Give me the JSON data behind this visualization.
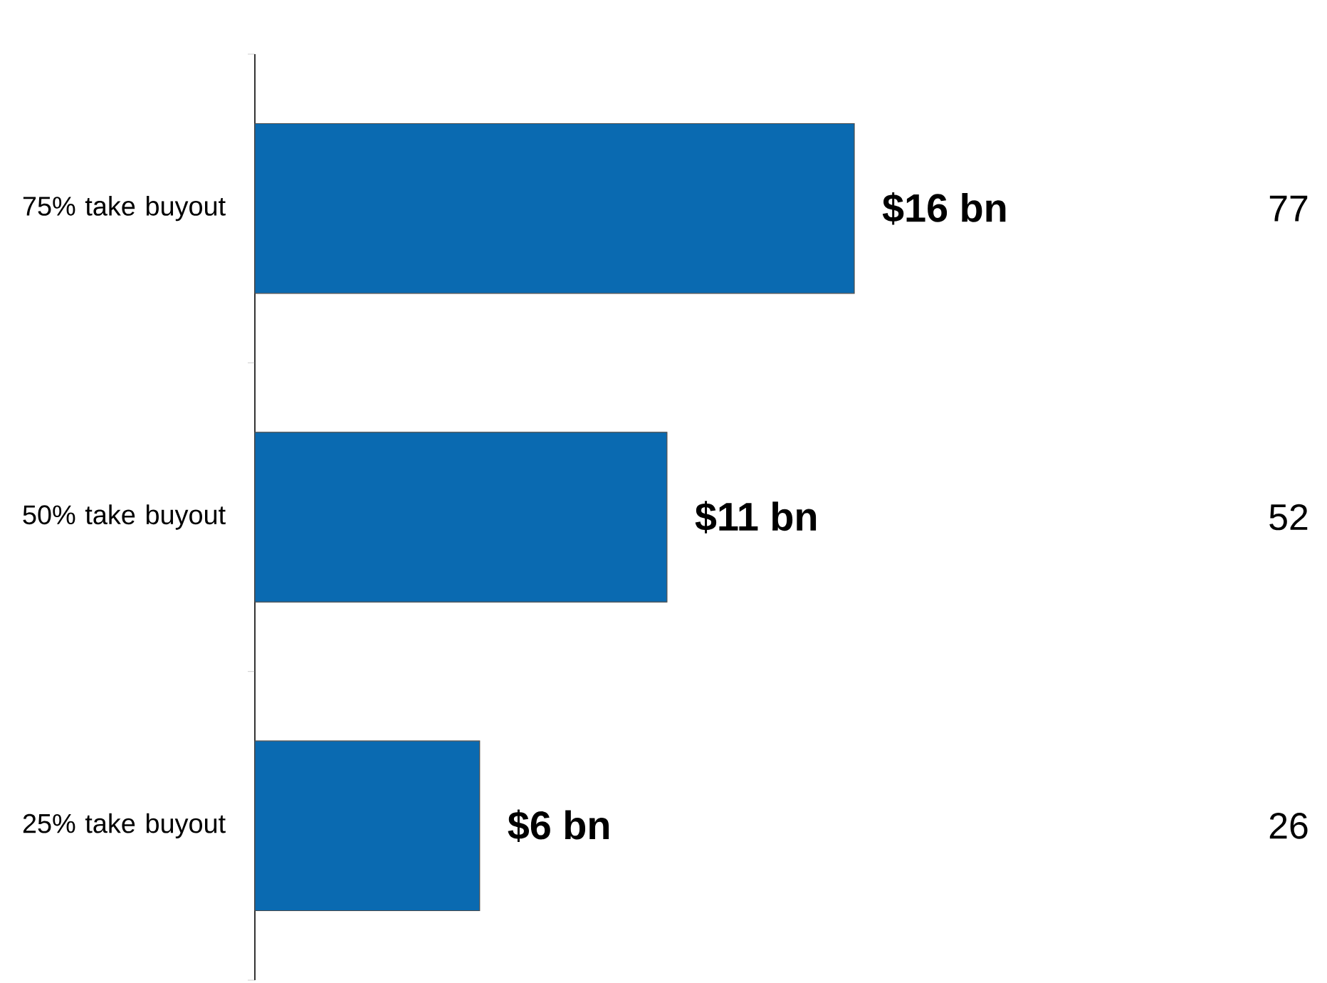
{
  "chart_data": {
    "type": "bar",
    "orientation": "horizontal",
    "categories": [
      "75% take buyout",
      "50% take buyout",
      "25% take buyout"
    ],
    "values": [
      16,
      11,
      6
    ],
    "value_labels": [
      "$16 bn",
      "$11 bn",
      "$6 bn"
    ],
    "color": "#0a6ab1",
    "annotations": [
      "77",
      "52",
      "26"
    ]
  }
}
